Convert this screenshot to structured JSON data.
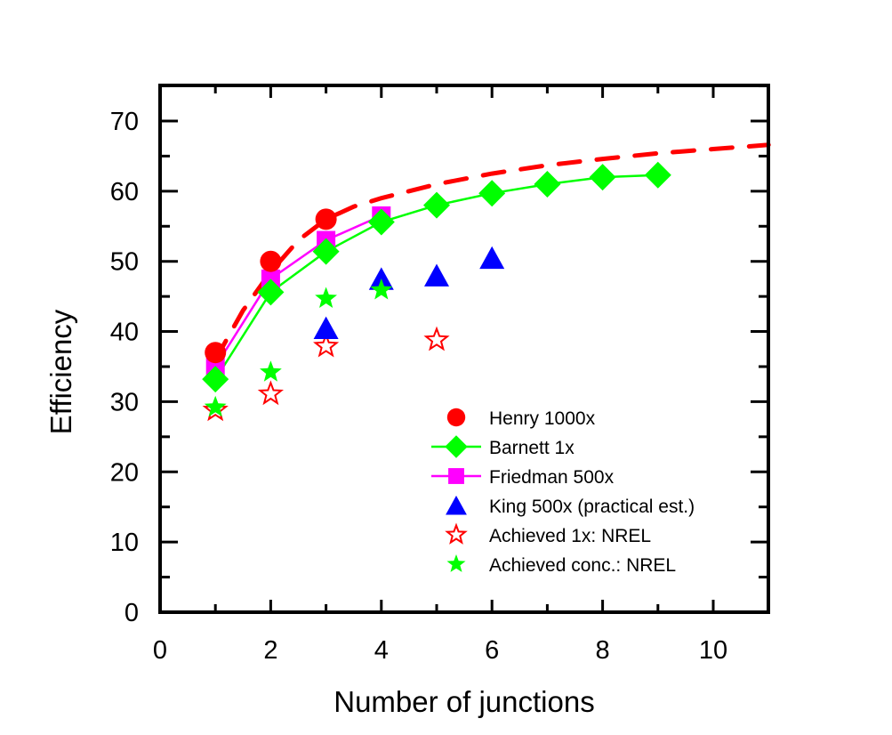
{
  "chart_data": {
    "type": "scatter",
    "title": "",
    "xlabel": "Number of junctions",
    "ylabel": "Efficiency",
    "xlim": [
      0,
      11
    ],
    "ylim": [
      0,
      75
    ],
    "xticks": [
      0,
      2,
      4,
      6,
      8,
      10
    ],
    "xtick_labels": [
      "0",
      "2",
      "4",
      "6",
      "8",
      "10"
    ],
    "yticks": [
      0,
      10,
      20,
      30,
      40,
      50,
      60,
      70
    ],
    "ytick_labels": [
      "0",
      "10",
      "20",
      "30",
      "40",
      "50",
      "60",
      "70"
    ],
    "x_minor_step": 1,
    "y_minor_step": 5,
    "grid": false,
    "legend_position": "bottom-right",
    "series": [
      {
        "name": "Henry 1000x",
        "marker": "circle",
        "color": "#ff0000",
        "line": false,
        "x": [
          1,
          2,
          3
        ],
        "y": [
          37.0,
          50.0,
          56.0
        ]
      },
      {
        "name": "Barnett 1x",
        "marker": "diamond",
        "color": "#00ff00",
        "line": true,
        "x": [
          1,
          2,
          3,
          4,
          5,
          6,
          7,
          8,
          9
        ],
        "y": [
          33.2,
          45.6,
          51.4,
          55.6,
          58.0,
          59.7,
          61.0,
          62.0,
          62.3
        ]
      },
      {
        "name": "Friedman 500x",
        "marker": "square",
        "color": "#ff00ff",
        "line": true,
        "x": [
          1,
          2,
          3,
          4
        ],
        "y": [
          35.0,
          47.5,
          53.0,
          56.5
        ]
      },
      {
        "name": "King 500x (practical est.)",
        "marker": "triangle",
        "color": "#0000ff",
        "line": false,
        "x": [
          3,
          4,
          5,
          6
        ],
        "y": [
          40.5,
          47.5,
          48.0,
          50.5
        ]
      },
      {
        "name": "Achieved 1x: NREL",
        "marker": "star-open",
        "color": "#ff0000",
        "line": false,
        "x": [
          1,
          2,
          3,
          5
        ],
        "y": [
          28.8,
          31.1,
          37.9,
          38.8
        ]
      },
      {
        "name": "Achieved conc.: NREL",
        "marker": "star",
        "color": "#00ff00",
        "line": false,
        "x": [
          1,
          2,
          3,
          4
        ],
        "y": [
          29.2,
          34.2,
          44.7,
          45.9
        ]
      }
    ],
    "curves": [
      {
        "name": "Henry 1000x trend (dashed)",
        "color": "#ff0000",
        "style": "dashed",
        "x": [
          1,
          1.5,
          2,
          2.5,
          3,
          3.5,
          4,
          5,
          6,
          7,
          8,
          9,
          10,
          11
        ],
        "y": [
          36.0,
          43.0,
          48.5,
          53.0,
          56.0,
          57.8,
          59.0,
          61.0,
          62.5,
          63.7,
          64.6,
          65.4,
          66.0,
          66.6
        ]
      }
    ]
  }
}
